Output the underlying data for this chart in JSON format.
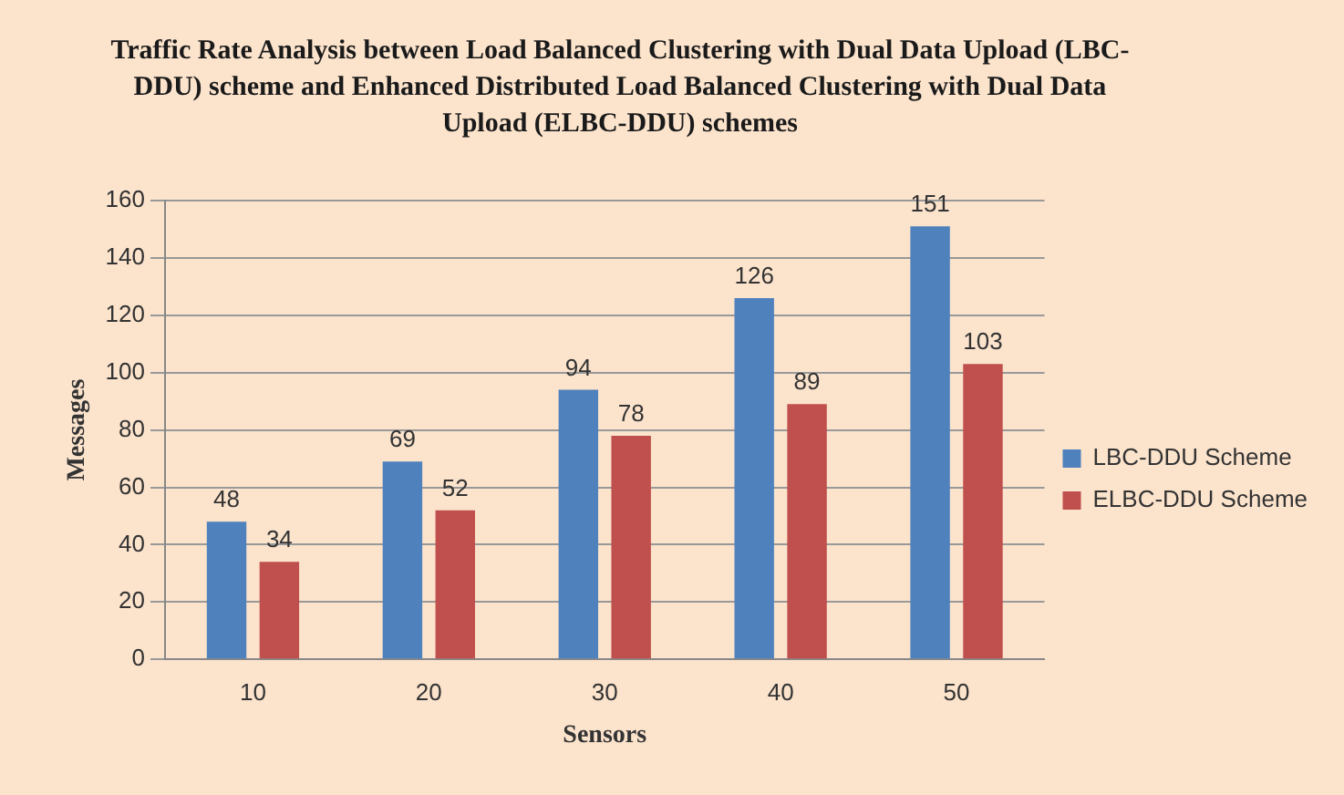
{
  "chart_data": {
    "type": "bar",
    "title": "Traffic Rate Analysis between Load Balanced Clustering with Dual Data Upload (LBC-DDU) scheme and Enhanced Distributed Load Balanced Clustering with Dual Data Upload (ELBC-DDU) schemes",
    "xlabel": "Sensors",
    "ylabel": "Messages",
    "categories": [
      "10",
      "20",
      "30",
      "40",
      "50"
    ],
    "series": [
      {
        "name": "LBC-DDU Scheme",
        "color": "#4f81bd",
        "values": [
          48,
          69,
          94,
          126,
          151
        ]
      },
      {
        "name": "ELBC-DDU Scheme",
        "color": "#c0504d",
        "values": [
          34,
          52,
          78,
          89,
          103
        ]
      }
    ],
    "ylim": [
      0,
      160
    ],
    "yticks": [
      0,
      20,
      40,
      60,
      80,
      100,
      120,
      140,
      160
    ],
    "grid": "y",
    "legend": "right",
    "data_labels": true
  }
}
